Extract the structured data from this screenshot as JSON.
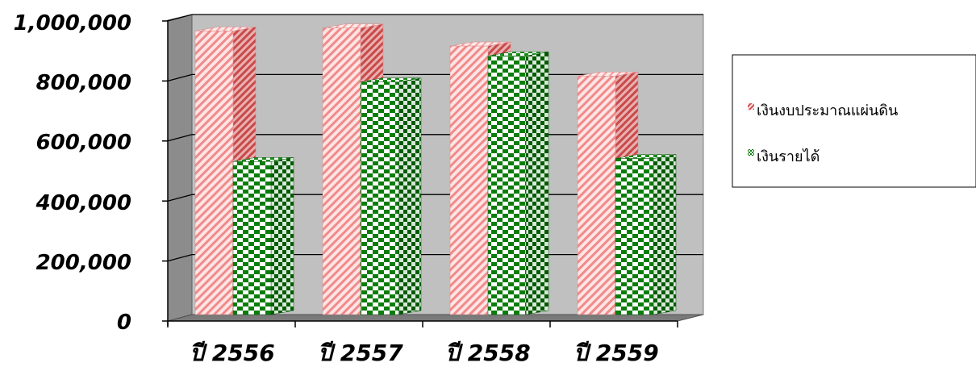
{
  "chart_data": {
    "type": "bar",
    "title": "",
    "xlabel": "",
    "ylabel": "",
    "categories": [
      "ปี 2556",
      "ปี 2557",
      "ปี 2558",
      "ปี 2559"
    ],
    "series": [
      {
        "name": "เงินงบประมาณแผ่นดิน",
        "values": [
          945000,
          955000,
          895000,
          795000
        ],
        "color": "#f08080",
        "pattern": "diagonal-stripes"
      },
      {
        "name": "เงินรายได้",
        "values": [
          510000,
          775000,
          862000,
          520000
        ],
        "color": "#008000",
        "pattern": "checkerboard"
      }
    ],
    "y_ticks": [
      "0",
      "200,000",
      "400,000",
      "600,000",
      "800,000",
      "1,000,000"
    ],
    "ylim": [
      0,
      1000000
    ],
    "grid": true,
    "legend_position": "right",
    "style": "3d-clustered-column",
    "wall_color": "#c0c0c0"
  }
}
